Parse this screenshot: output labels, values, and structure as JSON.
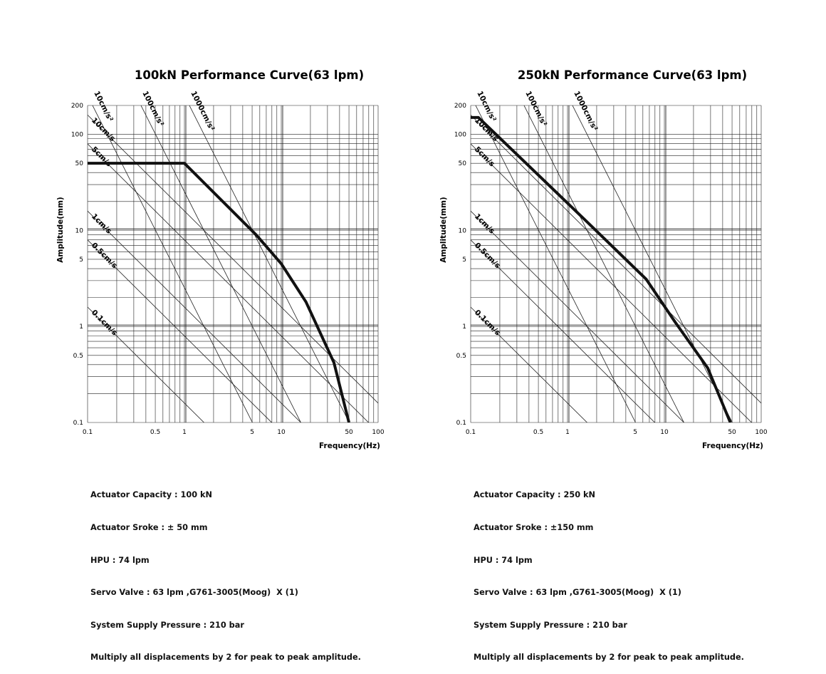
{
  "chart_data": [
    {
      "type": "line",
      "title": "100kN Performance Curve(63 lpm)",
      "xlabel": "Frequency(Hz)",
      "ylabel": "Amplitude(mm)",
      "xscale": "log",
      "yscale": "log",
      "xlim": [
        0.1,
        100
      ],
      "ylim": [
        0.1,
        200
      ],
      "xticks": [
        0.1,
        0.5,
        1,
        5,
        10,
        50,
        100
      ],
      "xtick_labels": [
        "0.1",
        "0.5",
        "1",
        "5",
        "10",
        "50",
        "100"
      ],
      "yticks": [
        0.1,
        0.5,
        1,
        5,
        10,
        50,
        100,
        200
      ],
      "ytick_labels": [
        "0.1",
        "0.5",
        "1",
        "5",
        "10",
        "50",
        "100",
        "200"
      ],
      "reference_lines": [
        {
          "label": "10cm/s²",
          "kind": "acceleration",
          "value": 10
        },
        {
          "label": "100cm/s²",
          "kind": "acceleration",
          "value": 100
        },
        {
          "label": "1000cm/s²",
          "kind": "acceleration",
          "value": 1000
        },
        {
          "label": "10cm/s",
          "kind": "velocity",
          "value": 10
        },
        {
          "label": "5cm/s",
          "kind": "velocity",
          "value": 5
        },
        {
          "label": "1cm/s",
          "kind": "velocity",
          "value": 1
        },
        {
          "label": "0.5cm/s",
          "kind": "velocity",
          "value": 0.5
        },
        {
          "label": "0.1cm/s",
          "kind": "velocity",
          "value": 0.1
        }
      ],
      "series": [
        {
          "name": "Performance",
          "x": [
            0.1,
            1.0,
            5.5,
            10,
            18,
            35,
            50
          ],
          "y": [
            50,
            50,
            9,
            4.5,
            1.8,
            0.42,
            0.1
          ]
        }
      ],
      "spec_lines": [
        "Actuator Capacity : 100 kN",
        "Actuator Sroke : ± 50 mm",
        "HPU : 74 lpm",
        "Servo Valve : 63 lpm ,G761-3005(Moog)  X (1)",
        "System Supply Pressure : 210 bar",
        "Multiply all displacements by 2 for peak to peak amplitude."
      ]
    },
    {
      "type": "line",
      "title": "250kN Performance Curve(63 lpm)",
      "xlabel": "Frequency(Hz)",
      "ylabel": "Amplitude(mm)",
      "xscale": "log",
      "yscale": "log",
      "xlim": [
        0.1,
        100
      ],
      "ylim": [
        0.1,
        200
      ],
      "xticks": [
        0.1,
        0.5,
        1,
        5,
        10,
        50,
        100
      ],
      "xtick_labels": [
        "0.1",
        "0.5",
        "1",
        "5",
        "10",
        "50",
        "100"
      ],
      "yticks": [
        0.1,
        0.5,
        1,
        5,
        10,
        50,
        100,
        200
      ],
      "ytick_labels": [
        "0.1",
        "0.5",
        "1",
        "5",
        "10",
        "50",
        "100",
        "200"
      ],
      "reference_lines": [
        {
          "label": "10cm/s²",
          "kind": "acceleration",
          "value": 10
        },
        {
          "label": "100cm/s²",
          "kind": "acceleration",
          "value": 100
        },
        {
          "label": "1000cm/s²",
          "kind": "acceleration",
          "value": 1000
        },
        {
          "label": "10cm/s",
          "kind": "velocity",
          "value": 10
        },
        {
          "label": "5cm/s",
          "kind": "velocity",
          "value": 5
        },
        {
          "label": "1cm/s",
          "kind": "velocity",
          "value": 1
        },
        {
          "label": "0.5cm/s",
          "kind": "velocity",
          "value": 0.5
        },
        {
          "label": "0.1cm/s",
          "kind": "velocity",
          "value": 0.1
        }
      ],
      "series": [
        {
          "name": "Performance",
          "x": [
            0.1,
            0.12,
            1.5,
            6.5,
            13,
            28,
            48
          ],
          "y": [
            150,
            150,
            13,
            3.1,
            1.1,
            0.37,
            0.1
          ]
        }
      ],
      "spec_lines": [
        "Actuator Capacity : 250 kN",
        "Actuator Sroke : ±150 mm",
        "HPU : 74 lpm",
        "Servo Valve : 63 lpm ,G761-3005(Moog)  X (1)",
        "System Supply Pressure : 210 bar",
        "Multiply all displacements by 2 for peak to peak amplitude."
      ]
    }
  ]
}
